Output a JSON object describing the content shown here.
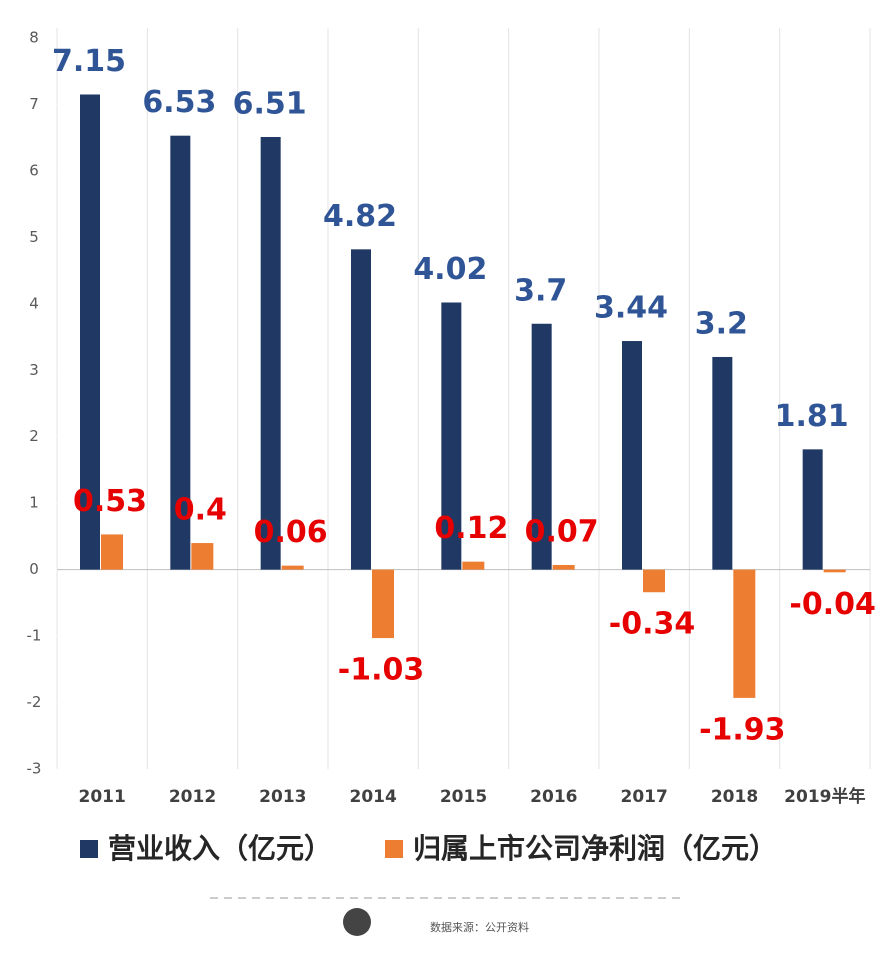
{
  "chart_data": {
    "type": "bar",
    "categories": [
      "2011",
      "2012",
      "2013",
      "2014",
      "2015",
      "2016",
      "2017",
      "2018",
      "2019半年"
    ],
    "series": [
      {
        "name": "营业收入（亿元）",
        "color": "#1f3864",
        "values": [
          7.15,
          6.53,
          6.51,
          4.82,
          4.02,
          3.7,
          3.44,
          3.2,
          1.81
        ]
      },
      {
        "name": "归属上市公司净利润（亿元）",
        "color": "#ed7d31",
        "values": [
          0.53,
          0.4,
          0.06,
          -1.03,
          0.12,
          0.07,
          -0.34,
          -1.93,
          -0.04
        ]
      }
    ],
    "ylim": [
      -3,
      8
    ],
    "yticks": [
      -3,
      -2,
      -1,
      0,
      1,
      2,
      3,
      4,
      5,
      6,
      7,
      8
    ],
    "grid": true
  },
  "footer": {
    "source": "数据来源：公开资料"
  }
}
